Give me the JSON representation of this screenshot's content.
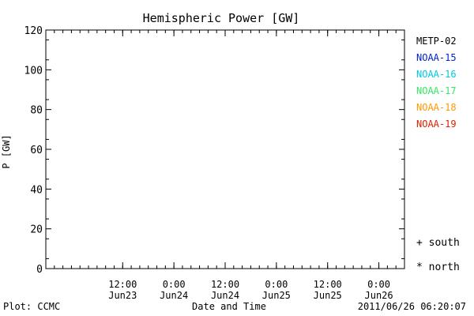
{
  "chart_data": {
    "type": "scatter",
    "title": "Hemispheric Power [GW]",
    "ylabel": "P [GW]",
    "xlabel": "Date and Time",
    "ylim": [
      0,
      120
    ],
    "yticks": [
      0,
      20,
      40,
      60,
      80,
      100,
      120
    ],
    "xlim": [
      "2011-06-22T18:00",
      "2011-06-26T06:00"
    ],
    "xticks": [
      {
        "time": "2011-06-23T12:00",
        "label": "12:00",
        "date": "Jun23"
      },
      {
        "time": "2011-06-24T00:00",
        "label": "0:00",
        "date": "Jun24"
      },
      {
        "time": "2011-06-24T12:00",
        "label": "12:00",
        "date": "Jun24"
      },
      {
        "time": "2011-06-25T00:00",
        "label": "0:00",
        "date": "Jun25"
      },
      {
        "time": "2011-06-25T12:00",
        "label": "12:00",
        "date": "Jun25"
      },
      {
        "time": "2011-06-26T00:00",
        "label": "0:00",
        "date": "Jun26"
      }
    ],
    "legend_placement": "right",
    "series": [
      {
        "name": "METP-02",
        "color": "#000000",
        "points": []
      },
      {
        "name": "NOAA-15",
        "color": "#0022cc",
        "points": []
      },
      {
        "name": "NOAA-16",
        "color": "#00c8e6",
        "points": []
      },
      {
        "name": "NOAA-17",
        "color": "#33e866",
        "points": []
      },
      {
        "name": "NOAA-18",
        "color": "#ff9900",
        "points": []
      },
      {
        "name": "NOAA-19",
        "color": "#dd2200",
        "points": []
      }
    ],
    "marker_legend": [
      {
        "symbol": "+",
        "label": "south"
      },
      {
        "symbol": "*",
        "label": "north"
      }
    ]
  },
  "footer": {
    "left": "Plot: CCMC",
    "right": "2011/06/26 06:20:07"
  }
}
